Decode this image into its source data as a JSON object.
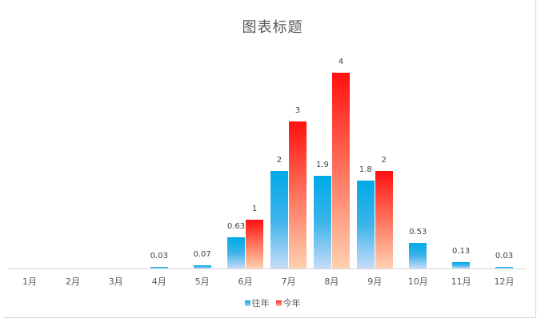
{
  "chart_data": {
    "type": "bar",
    "title": "图表标题",
    "xlabel": "",
    "ylabel": "",
    "categories": [
      "1月",
      "2月",
      "3月",
      "4月",
      "5月",
      "6月",
      "7月",
      "8月",
      "9月",
      "10月",
      "11月",
      "12月"
    ],
    "series": [
      {
        "name": "往年",
        "color": "#00a9e8",
        "values": [
          null,
          null,
          null,
          0.03,
          0.07,
          0.63,
          2,
          1.9,
          1.8,
          0.53,
          0.13,
          0.03
        ]
      },
      {
        "name": "今年",
        "color": "#ff1010",
        "values": [
          null,
          null,
          null,
          null,
          null,
          1,
          3,
          4,
          2,
          null,
          null,
          null
        ]
      }
    ],
    "data_labels": true,
    "ylim": [
      0,
      4.5
    ],
    "grid": false,
    "legend_position": "bottom"
  },
  "colors": {
    "prev_top": "#00a9e8",
    "prev_bottom": "#c6dcf8",
    "curr_top": "#ff1010",
    "curr_bottom": "#ffd0b0",
    "axis": "#d9d9d9",
    "text": "#595959"
  }
}
